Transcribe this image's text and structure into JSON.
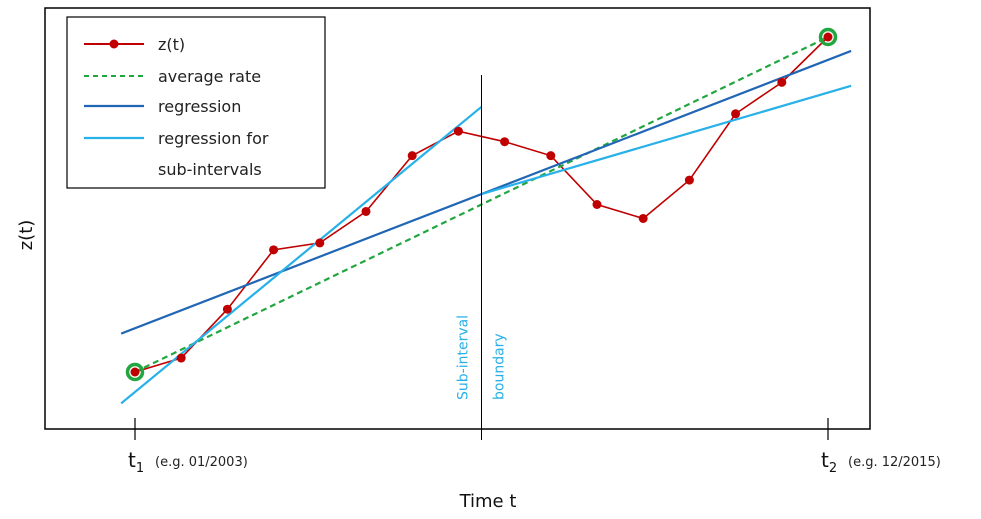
{
  "chart_data": {
    "type": "line",
    "title": "",
    "xlabel": "Time t",
    "ylabel": "z(t)",
    "xlim": [
      0,
      16.5
    ],
    "ylim": [
      0,
      10
    ],
    "grid": false,
    "legend_position": "top-left",
    "x_ticks": [
      {
        "x": 1,
        "main": "t",
        "sub": "1",
        "note": "(e.g. 01/2003)"
      },
      {
        "x": 16,
        "main": "t",
        "sub": "2",
        "note": "(e.g. 12/2015)"
      }
    ],
    "series": [
      {
        "name": "z(t)",
        "color": "#c00000",
        "style": "line-markers",
        "x": [
          1,
          2,
          3,
          4,
          5,
          6,
          7,
          8,
          9,
          10,
          11,
          12,
          13,
          14,
          15,
          16
        ],
        "y": [
          1.6,
          2.0,
          3.4,
          5.1,
          5.3,
          6.2,
          7.8,
          8.5,
          8.2,
          7.8,
          6.4,
          6.0,
          7.1,
          9.0,
          9.9,
          11.2
        ]
      },
      {
        "name": "average rate",
        "color": "#21a640",
        "style": "dashed",
        "x": [
          1,
          16
        ],
        "y": [
          1.6,
          11.2
        ]
      },
      {
        "name": "regression",
        "color": "#2166b5",
        "style": "solid",
        "x": [
          0.7,
          16.5
        ],
        "y": [
          2.7,
          10.8
        ]
      },
      {
        "name": "regression for sub-intervals",
        "color": "#28b0e8",
        "style": "solid",
        "segments": [
          {
            "x": [
              0.7,
              8.5
            ],
            "y": [
              0.7,
              9.2
            ]
          },
          {
            "x": [
              8.5,
              16.5
            ],
            "y": [
              6.7,
              9.8
            ]
          }
        ]
      }
    ],
    "highlighted_points": [
      {
        "x": 1,
        "y": 1.6,
        "color": "#21a640"
      },
      {
        "x": 16,
        "y": 11.2,
        "color": "#21a640"
      }
    ],
    "annotations": [
      {
        "type": "vertical-line",
        "x": 8.5,
        "label_line1": "Sub-interval",
        "label_line2": "boundary",
        "color": "#28b0e8"
      }
    ],
    "legend_labels": [
      "z(t)",
      "average rate",
      "regression",
      "regression for",
      "sub-intervals"
    ]
  }
}
